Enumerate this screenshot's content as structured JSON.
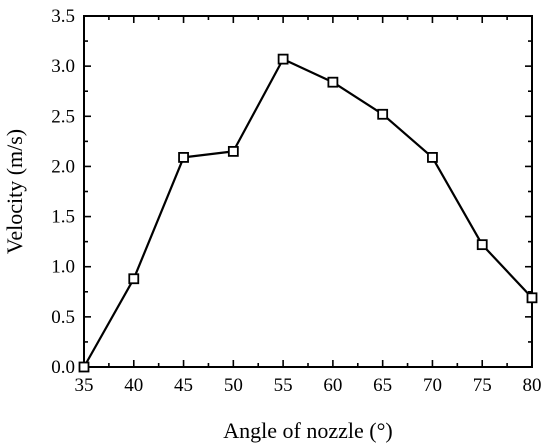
{
  "chart_data": {
    "type": "line",
    "title": "",
    "xlabel": "Angle of nozzle (°)",
    "ylabel": "Velocity (m/s)",
    "xlim": [
      35,
      80
    ],
    "ylim": [
      0.0,
      3.5
    ],
    "x_ticks": [
      "35",
      "40",
      "45",
      "50",
      "55",
      "60",
      "65",
      "70",
      "75",
      "80"
    ],
    "y_ticks": [
      "0.0",
      "0.5",
      "1.0",
      "1.5",
      "2.0",
      "2.5",
      "3.0",
      "3.5"
    ],
    "grid": false,
    "legend": "none",
    "series": [
      {
        "marker": "open-square",
        "color": "#000000",
        "x": [
          35,
          40,
          45,
          50,
          55,
          60,
          65,
          70,
          75,
          80
        ],
        "y": [
          0.0,
          0.88,
          2.09,
          2.15,
          3.07,
          2.84,
          2.52,
          2.09,
          1.22,
          0.69
        ]
      }
    ]
  }
}
